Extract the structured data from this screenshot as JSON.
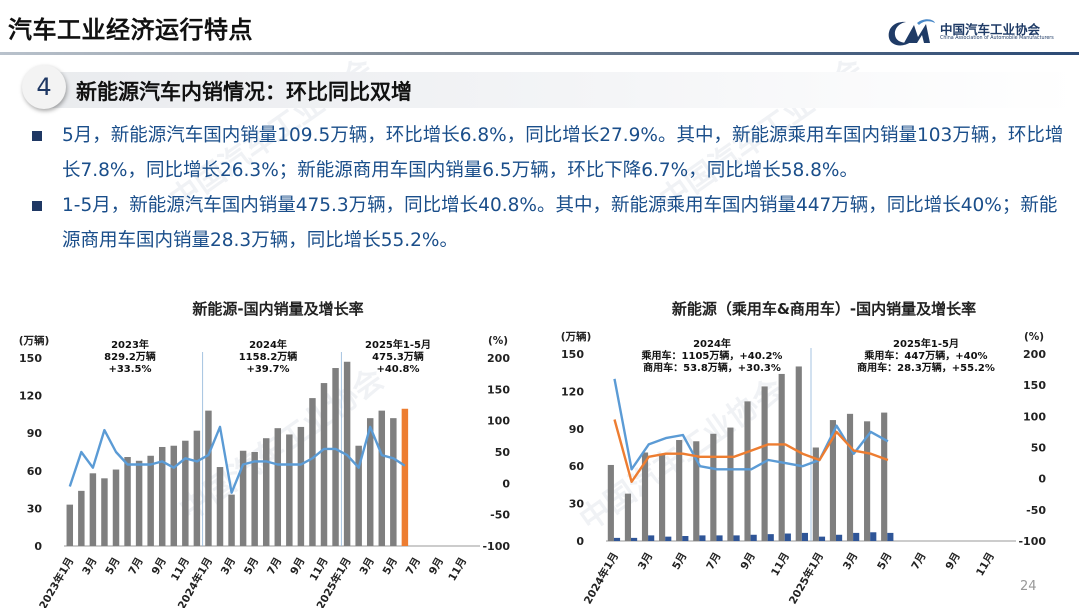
{
  "header": {
    "title": "汽车工业经济运行特点",
    "logo_cn": "中国汽车工业协会",
    "logo_en": "China Association of Automobile Manufacturers",
    "logo_mark": "CAAM"
  },
  "section": {
    "number": "4",
    "title": "新能源汽车内销情况：环比同比双增"
  },
  "bullets": [
    "5月，新能源汽车国内销量109.5万辆，环比增长6.8%，同比增长27.9%。其中，新能源乘用车国内销量103万辆，环比增长7.8%，同比增长26.3%；新能源商用车国内销量6.5万辆，环比下降6.7%，同比增长58.8%。",
    "1-5月，新能源汽车国内销量475.3万辆，同比增长40.8%。其中，新能源乘用车国内销量447万辆，同比增长40%；新能源商用车国内销量28.3万辆，同比增长55.2%。"
  ],
  "watermark": {
    "text": "中国汽车工业协会",
    "subtext": "China Association of Automobile Manufacturers"
  },
  "page_number": "24",
  "colors": {
    "navy": "#1f3864",
    "text_blue": "#1a4e8a",
    "bar_gray": "#7f7f7f",
    "bar_orange": "#ed7d31",
    "line_blue": "#5b9bd5",
    "line_orange": "#ed7d31",
    "bar_navy": "#2f5597"
  },
  "chart_data": [
    {
      "type": "bar",
      "title": "新能源-国内销量及增长率",
      "y_left_unit": "(万辆)",
      "y_right_unit": "(%)",
      "ylim_left": [
        0,
        150
      ],
      "yticks_left": [
        "0",
        "30",
        "60",
        "90",
        "120",
        "150"
      ],
      "ylim_right": [
        -100,
        200
      ],
      "yticks_right": [
        "-100",
        "-50",
        "0",
        "50",
        "100",
        "150",
        "200"
      ],
      "x_tick_labels": [
        "2023年1月",
        "3月",
        "5月",
        "7月",
        "9月",
        "11月",
        "2024年1月",
        "3月",
        "5月",
        "7月",
        "9月",
        "11月",
        "2025年1月",
        "3月",
        "5月",
        "7月",
        "9月",
        "11月"
      ],
      "annotations": [
        {
          "lines": [
            "2023年",
            "829.2万辆",
            "+33.5%"
          ]
        },
        {
          "lines": [
            "2024年",
            "1158.2万辆",
            "+39.7%"
          ]
        },
        {
          "lines": [
            "2025年1-5月",
            "475.3万辆",
            "+40.8%"
          ]
        }
      ],
      "series": [
        {
          "kind": "bar",
          "values": [
            33,
            44,
            58,
            54,
            61,
            71,
            68,
            72,
            79,
            80,
            84,
            92,
            108,
            63,
            41,
            76,
            75,
            86,
            94,
            89,
            95,
            118,
            130,
            142,
            147,
            80,
            102,
            108,
            102,
            109.5,
            null,
            null,
            null,
            null,
            null,
            null
          ],
          "highlight_index": 29
        },
        {
          "kind": "line",
          "values": [
            -5,
            50,
            25,
            85,
            50,
            30,
            30,
            30,
            35,
            25,
            40,
            35,
            45,
            90,
            -15,
            30,
            35,
            35,
            30,
            30,
            30,
            40,
            55,
            55,
            45,
            25,
            90,
            45,
            40,
            28,
            null,
            null,
            null,
            null,
            null,
            null
          ]
        }
      ]
    },
    {
      "type": "bar",
      "title": "新能源（乘用车&商用车）-国内销量及增长率",
      "y_left_unit": "(万辆)",
      "y_right_unit": "(%)",
      "ylim_left": [
        0,
        150
      ],
      "yticks_left": [
        "0",
        "30",
        "60",
        "90",
        "120",
        "150"
      ],
      "ylim_right": [
        -100,
        200
      ],
      "yticks_right": [
        "-100",
        "-50",
        "0",
        "50",
        "100",
        "150",
        "200"
      ],
      "x_tick_labels": [
        "2024年1月",
        "3月",
        "5月",
        "7月",
        "9月",
        "11月",
        "2025年1月",
        "3月",
        "5月",
        "7月",
        "9月",
        "11月"
      ],
      "annotations": [
        {
          "lines": [
            "2024年",
            "乘用车：1105万辆，+40.2%",
            "商用车：53.8万辆，+30.3%"
          ]
        },
        {
          "lines": [
            "2025年1-5月",
            "乘用车：447万辆，+40%",
            "商用车：28.3万辆，+55.2%"
          ]
        }
      ],
      "series": [
        {
          "kind": "bar",
          "values": [
            61,
            38,
            71,
            70,
            81,
            80,
            86,
            91,
            112,
            124,
            134,
            140,
            75,
            97,
            102,
            96,
            103,
            null,
            null,
            null,
            null,
            null,
            null,
            null
          ]
        },
        {
          "kind": "bar",
          "values": [
            2.5,
            2.5,
            4.5,
            3.5,
            4,
            4.5,
            4.5,
            4.5,
            5,
            5.5,
            6,
            6.5,
            3.5,
            5,
            6.5,
            7,
            6.5,
            null,
            null,
            null,
            null,
            null,
            null,
            null
          ]
        },
        {
          "kind": "line",
          "values": [
            160,
            15,
            55,
            65,
            70,
            20,
            15,
            15,
            15,
            30,
            25,
            20,
            30,
            85,
            40,
            75,
            60,
            null,
            null,
            null,
            null,
            null,
            null,
            null
          ]
        },
        {
          "kind": "line",
          "values": [
            95,
            -5,
            35,
            40,
            40,
            35,
            35,
            35,
            45,
            55,
            55,
            40,
            30,
            75,
            45,
            40,
            30,
            null,
            null,
            null,
            null,
            null,
            null,
            null
          ]
        }
      ]
    }
  ]
}
